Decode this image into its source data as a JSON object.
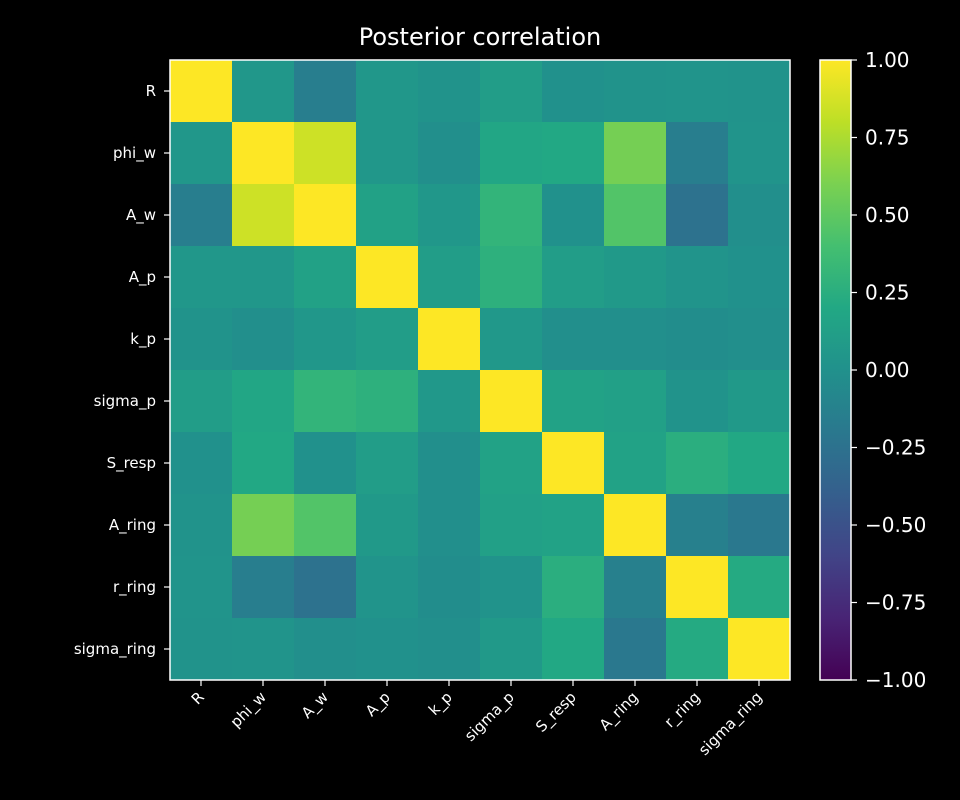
{
  "chart_data": {
    "type": "heatmap",
    "title": "Posterior correlation",
    "labels": [
      "R",
      "phi_w",
      "A_w",
      "A_p",
      "k_p",
      "sigma_p",
      "S_resp",
      "A_ring",
      "r_ring",
      "sigma_ring"
    ],
    "matrix": [
      [
        1.0,
        0.05,
        -0.15,
        0.05,
        0.02,
        0.1,
        0.0,
        0.02,
        0.03,
        0.02
      ],
      [
        0.05,
        1.0,
        0.85,
        0.05,
        -0.02,
        0.18,
        0.2,
        0.58,
        -0.15,
        0.03
      ],
      [
        -0.15,
        0.85,
        1.0,
        0.14,
        0.05,
        0.3,
        0.0,
        0.45,
        -0.25,
        -0.02
      ],
      [
        0.05,
        0.05,
        0.14,
        1.0,
        0.1,
        0.27,
        0.1,
        0.07,
        0.03,
        0.0
      ],
      [
        0.02,
        -0.02,
        0.05,
        0.1,
        1.0,
        0.06,
        -0.02,
        -0.02,
        -0.03,
        -0.02
      ],
      [
        0.1,
        0.18,
        0.3,
        0.27,
        0.06,
        1.0,
        0.15,
        0.13,
        0.02,
        0.07
      ],
      [
        0.0,
        0.2,
        0.0,
        0.1,
        -0.02,
        0.15,
        1.0,
        0.15,
        0.25,
        0.2
      ],
      [
        0.02,
        0.58,
        0.45,
        0.07,
        -0.02,
        0.13,
        0.15,
        1.0,
        -0.14,
        -0.2
      ],
      [
        0.03,
        -0.15,
        -0.25,
        0.03,
        -0.03,
        0.02,
        0.25,
        -0.14,
        1.0,
        0.22
      ],
      [
        0.02,
        0.03,
        -0.02,
        0.0,
        -0.02,
        0.07,
        0.2,
        -0.2,
        0.22,
        1.0
      ]
    ],
    "colormap": "viridis",
    "vmin": -1.0,
    "vmax": 1.0,
    "colorbar_ticks": [
      "1.00",
      "0.75",
      "0.50",
      "0.25",
      "0.00",
      "−0.25",
      "−0.50",
      "−0.75",
      "−1.00"
    ],
    "colorbar_values": [
      1.0,
      0.75,
      0.5,
      0.25,
      0.0,
      -0.25,
      -0.5,
      -0.75,
      -1.0
    ],
    "background": "#000000",
    "foreground": "#ffffff"
  }
}
